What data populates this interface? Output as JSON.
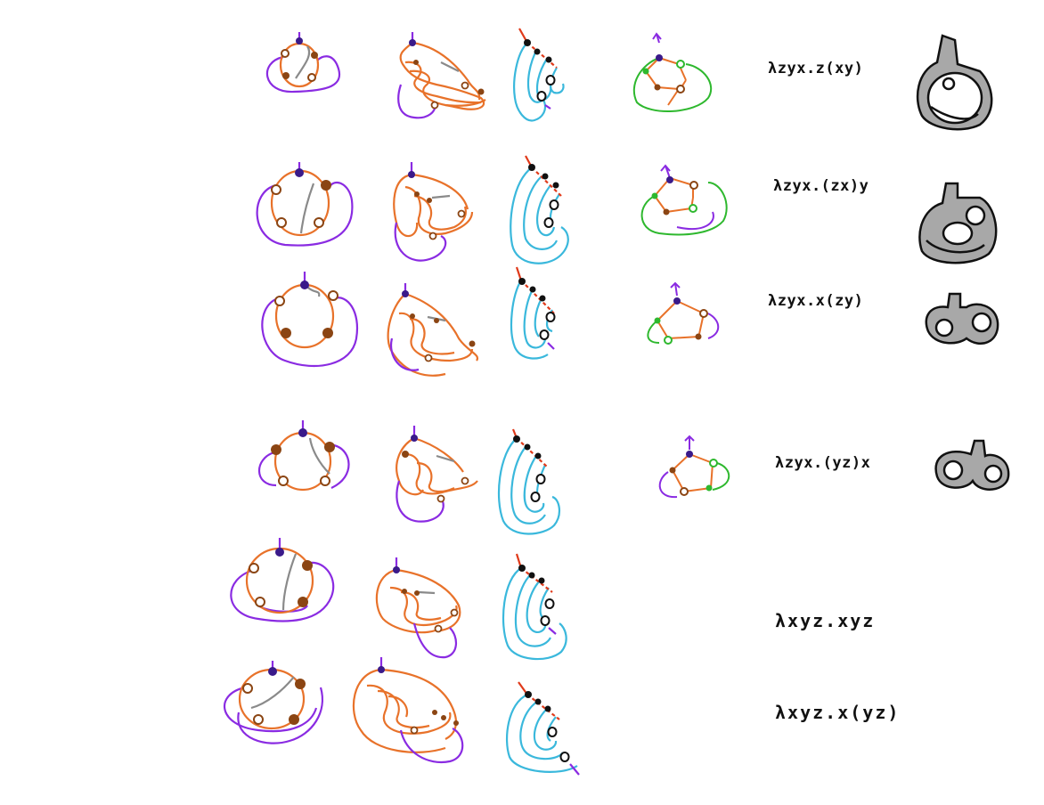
{
  "rows": [
    {
      "term": "λzyx.z(xy)",
      "has_graph": true,
      "has_surface": true
    },
    {
      "term": "λzyx.(zx)y",
      "has_graph": true,
      "has_surface": true
    },
    {
      "term": "λzyx.x(zy)",
      "has_graph": true,
      "has_surface": true
    },
    {
      "term": "λzyx.(yz)x",
      "has_graph": true,
      "has_surface": true
    },
    {
      "term": "λxyz.xyz",
      "has_graph": false,
      "has_surface": false
    },
    {
      "term": "λxyz.x(yz)",
      "has_graph": false,
      "has_surface": false
    }
  ],
  "colors": {
    "orange": "#e8722a",
    "purple": "#8a2be2",
    "cyan": "#3ab8dc",
    "green": "#2eb82e",
    "gray": "#8a8a8a",
    "brown": "#8b4513",
    "indigo": "#3a1a8a",
    "red": "#e03a1a",
    "black": "#111111",
    "surface_fill": "#a8a8a8"
  }
}
